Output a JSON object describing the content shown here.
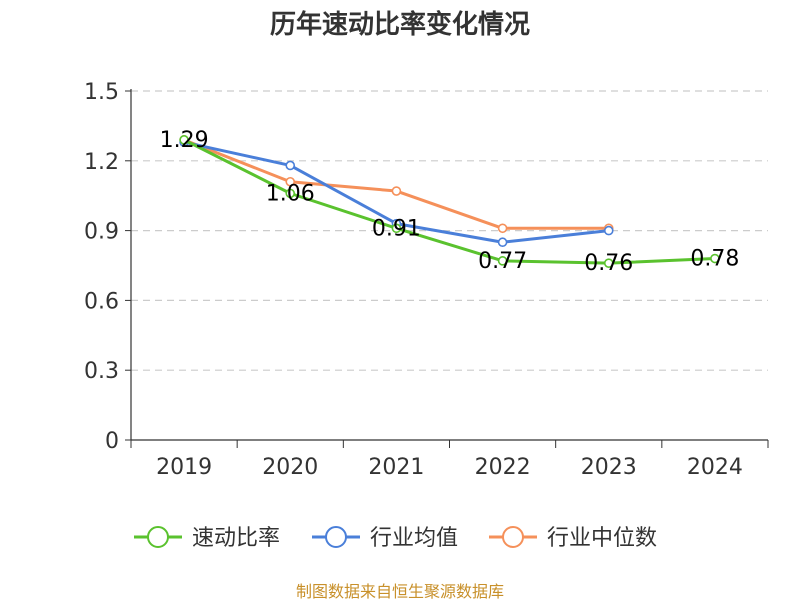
{
  "chart_data": {
    "type": "line",
    "title": "历年速动比率变化情况",
    "categories": [
      "2019",
      "2020",
      "2021",
      "2022",
      "2023",
      "2024"
    ],
    "y_ticks": [
      "0",
      "0.3",
      "0.6",
      "0.9",
      "1.2",
      "1.5"
    ],
    "ylim": [
      0,
      1.5
    ],
    "grid": true,
    "legend_position": "bottom",
    "series": [
      {
        "name": "速动比率",
        "color": "#5ac22e",
        "values": [
          1.29,
          1.06,
          0.91,
          0.77,
          0.76,
          0.78
        ],
        "labels": [
          "1.29",
          "1.06",
          "0.91",
          "0.77",
          "0.76",
          "0.78"
        ]
      },
      {
        "name": "行业均值",
        "color": "#4a7fd9",
        "values": [
          1.28,
          1.18,
          0.93,
          0.85,
          0.9,
          null
        ]
      },
      {
        "name": "行业中位数",
        "color": "#f5905a",
        "values": [
          1.29,
          1.11,
          1.07,
          0.91,
          0.91,
          null
        ]
      }
    ]
  },
  "source": "制图数据来自恒生聚源数据库"
}
